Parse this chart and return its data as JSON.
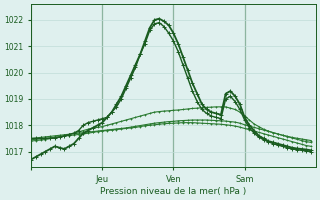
{
  "title": "Pression niveau de la mer( hPa )",
  "ylabel_ticks": [
    1017,
    1018,
    1019,
    1020,
    1021,
    1022
  ],
  "ylim": [
    1016.4,
    1022.6
  ],
  "xlim": [
    0,
    60
  ],
  "x_ticks": [
    0,
    15,
    30,
    45
  ],
  "x_tick_labels": [
    "",
    "Jeu",
    "Ven",
    "Sam"
  ],
  "bg_color": "#dff0ee",
  "grid_color": "#c0ddd8",
  "line_color_dark": "#1a5c20",
  "line_color_mid": "#2a7a30",
  "marker": "+",
  "series_peaked": [
    {
      "x": [
        0,
        1,
        2,
        3,
        4,
        5,
        6,
        7,
        8,
        9,
        10,
        11,
        12,
        13,
        14,
        15,
        16,
        17,
        18,
        19,
        20,
        21,
        22,
        23,
        24,
        25,
        26,
        27,
        28,
        29,
        30,
        31,
        32,
        33,
        34,
        35,
        36,
        37,
        38,
        39,
        40,
        41,
        42,
        43,
        44,
        45,
        46,
        47,
        48,
        49,
        50,
        51,
        52,
        53,
        54,
        55,
        56,
        57,
        58,
        59
      ],
      "y": [
        1016.7,
        1016.8,
        1016.9,
        1017.0,
        1017.1,
        1017.2,
        1017.15,
        1017.1,
        1017.2,
        1017.3,
        1017.5,
        1017.7,
        1017.8,
        1017.9,
        1018.0,
        1018.1,
        1018.3,
        1018.5,
        1018.8,
        1019.1,
        1019.5,
        1019.9,
        1020.3,
        1020.7,
        1021.2,
        1021.7,
        1022.0,
        1022.05,
        1021.95,
        1021.8,
        1021.5,
        1021.1,
        1020.6,
        1020.1,
        1019.6,
        1019.2,
        1018.8,
        1018.6,
        1018.5,
        1018.45,
        1018.4,
        1019.2,
        1019.3,
        1019.1,
        1018.8,
        1018.3,
        1018.0,
        1017.8,
        1017.6,
        1017.5,
        1017.4,
        1017.35,
        1017.3,
        1017.25,
        1017.2,
        1017.15,
        1017.12,
        1017.1,
        1017.08,
        1017.05
      ],
      "lw": 1.3
    },
    {
      "x": [
        0,
        1,
        2,
        3,
        4,
        5,
        6,
        7,
        8,
        9,
        10,
        11,
        12,
        13,
        14,
        15,
        16,
        17,
        18,
        19,
        20,
        21,
        22,
        23,
        24,
        25,
        26,
        27,
        28,
        29,
        30,
        31,
        32,
        33,
        34,
        35,
        36,
        37,
        38,
        39,
        40,
        41,
        42,
        43,
        44,
        45,
        46,
        47,
        48,
        49,
        50,
        51,
        52,
        53,
        54,
        55,
        56,
        57,
        58,
        59
      ],
      "y": [
        1017.5,
        1017.5,
        1017.5,
        1017.5,
        1017.5,
        1017.52,
        1017.55,
        1017.6,
        1017.65,
        1017.7,
        1017.8,
        1018.0,
        1018.1,
        1018.15,
        1018.2,
        1018.25,
        1018.3,
        1018.5,
        1018.7,
        1019.0,
        1019.4,
        1019.8,
        1020.2,
        1020.7,
        1021.1,
        1021.6,
        1021.85,
        1021.9,
        1021.75,
        1021.5,
        1021.2,
        1020.8,
        1020.3,
        1019.8,
        1019.3,
        1018.9,
        1018.6,
        1018.45,
        1018.35,
        1018.3,
        1018.25,
        1019.0,
        1019.1,
        1018.9,
        1018.6,
        1018.2,
        1017.9,
        1017.7,
        1017.55,
        1017.45,
        1017.38,
        1017.3,
        1017.25,
        1017.2,
        1017.15,
        1017.1,
        1017.08,
        1017.05,
        1017.02,
        1017.0
      ],
      "lw": 1.0
    }
  ],
  "series_flat": [
    {
      "x": [
        0,
        1,
        2,
        3,
        4,
        5,
        6,
        7,
        8,
        9,
        10,
        11,
        12,
        13,
        14,
        15,
        16,
        17,
        18,
        19,
        20,
        21,
        22,
        23,
        24,
        25,
        26,
        27,
        28,
        29,
        30,
        31,
        32,
        33,
        34,
        35,
        36,
        37,
        38,
        39,
        40,
        41,
        42,
        43,
        44,
        45,
        46,
        47,
        48,
        49,
        50,
        51,
        52,
        53,
        54,
        55,
        56,
        57,
        58,
        59
      ],
      "y": [
        1017.4,
        1017.42,
        1017.44,
        1017.46,
        1017.5,
        1017.52,
        1017.55,
        1017.6,
        1017.65,
        1017.7,
        1017.75,
        1017.8,
        1017.85,
        1017.9,
        1017.92,
        1017.95,
        1018.0,
        1018.05,
        1018.1,
        1018.15,
        1018.2,
        1018.25,
        1018.3,
        1018.35,
        1018.4,
        1018.45,
        1018.5,
        1018.52,
        1018.54,
        1018.55,
        1018.57,
        1018.58,
        1018.6,
        1018.62,
        1018.64,
        1018.65,
        1018.67,
        1018.68,
        1018.69,
        1018.7,
        1018.7,
        1018.7,
        1018.65,
        1018.6,
        1018.5,
        1018.35,
        1018.2,
        1018.05,
        1017.95,
        1017.85,
        1017.78,
        1017.72,
        1017.67,
        1017.62,
        1017.58,
        1017.54,
        1017.51,
        1017.48,
        1017.45,
        1017.42
      ],
      "lw": 0.8
    },
    {
      "x": [
        0,
        1,
        2,
        3,
        4,
        5,
        6,
        7,
        8,
        9,
        10,
        11,
        12,
        13,
        14,
        15,
        16,
        17,
        18,
        19,
        20,
        21,
        22,
        23,
        24,
        25,
        26,
        27,
        28,
        29,
        30,
        31,
        32,
        33,
        34,
        35,
        36,
        37,
        38,
        39,
        40,
        41,
        42,
        43,
        44,
        45,
        46,
        47,
        48,
        49,
        50,
        51,
        52,
        53,
        54,
        55,
        56,
        57,
        58,
        59
      ],
      "y": [
        1017.5,
        1017.52,
        1017.54,
        1017.56,
        1017.58,
        1017.6,
        1017.62,
        1017.64,
        1017.66,
        1017.68,
        1017.7,
        1017.72,
        1017.74,
        1017.76,
        1017.78,
        1017.8,
        1017.82,
        1017.84,
        1017.86,
        1017.88,
        1017.9,
        1017.93,
        1017.96,
        1017.99,
        1018.02,
        1018.05,
        1018.08,
        1018.1,
        1018.12,
        1018.14,
        1018.15,
        1018.17,
        1018.18,
        1018.19,
        1018.2,
        1018.2,
        1018.2,
        1018.2,
        1018.19,
        1018.18,
        1018.17,
        1018.16,
        1018.14,
        1018.12,
        1018.08,
        1018.02,
        1017.97,
        1017.92,
        1017.87,
        1017.82,
        1017.77,
        1017.72,
        1017.67,
        1017.62,
        1017.57,
        1017.52,
        1017.47,
        1017.42,
        1017.38,
        1017.35
      ],
      "lw": 0.8
    },
    {
      "x": [
        0,
        1,
        2,
        3,
        4,
        5,
        6,
        7,
        8,
        9,
        10,
        11,
        12,
        13,
        14,
        15,
        16,
        17,
        18,
        19,
        20,
        21,
        22,
        23,
        24,
        25,
        26,
        27,
        28,
        29,
        30,
        31,
        32,
        33,
        34,
        35,
        36,
        37,
        38,
        39,
        40,
        41,
        42,
        43,
        44,
        45,
        46,
        47,
        48,
        49,
        50,
        51,
        52,
        53,
        54,
        55,
        56,
        57,
        58,
        59
      ],
      "y": [
        1017.45,
        1017.47,
        1017.49,
        1017.51,
        1017.53,
        1017.55,
        1017.57,
        1017.59,
        1017.61,
        1017.63,
        1017.65,
        1017.67,
        1017.7,
        1017.73,
        1017.76,
        1017.78,
        1017.8,
        1017.82,
        1017.84,
        1017.86,
        1017.88,
        1017.9,
        1017.92,
        1017.95,
        1017.98,
        1018.0,
        1018.02,
        1018.04,
        1018.06,
        1018.07,
        1018.08,
        1018.09,
        1018.1,
        1018.1,
        1018.1,
        1018.09,
        1018.08,
        1018.07,
        1018.06,
        1018.05,
        1018.04,
        1018.02,
        1018.0,
        1017.97,
        1017.93,
        1017.88,
        1017.83,
        1017.78,
        1017.73,
        1017.68,
        1017.63,
        1017.58,
        1017.53,
        1017.48,
        1017.43,
        1017.38,
        1017.33,
        1017.28,
        1017.23,
        1017.2
      ],
      "lw": 0.8
    }
  ]
}
